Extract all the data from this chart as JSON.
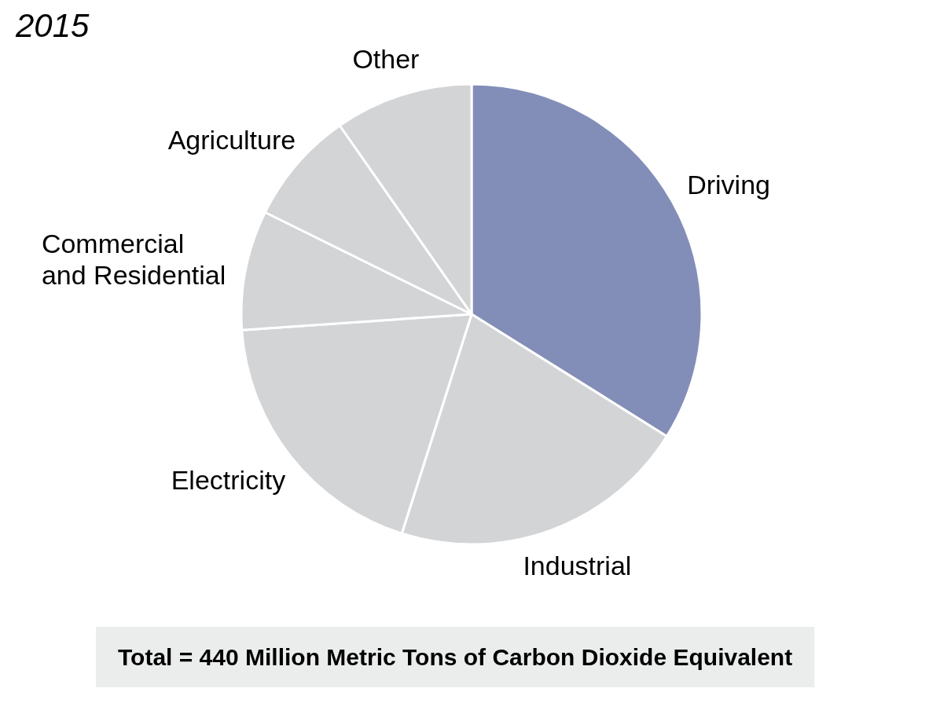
{
  "chart_data": {
    "type": "pie",
    "title": "2015",
    "categories": [
      "Driving",
      "Industrial",
      "Electricity",
      "Commercial and Residential",
      "Agriculture",
      "Other"
    ],
    "values": [
      33.9,
      21.0,
      19.0,
      8.4,
      8.0,
      9.7
    ],
    "colors": [
      "#838eb8",
      "#d3d4d6",
      "#d3d4d6",
      "#d3d4d6",
      "#d3d4d6",
      "#d3d4d6"
    ],
    "annotations": [
      "Total = 440 Million Metric Tons of Carbon Dioxide Equivalent"
    ]
  }
}
